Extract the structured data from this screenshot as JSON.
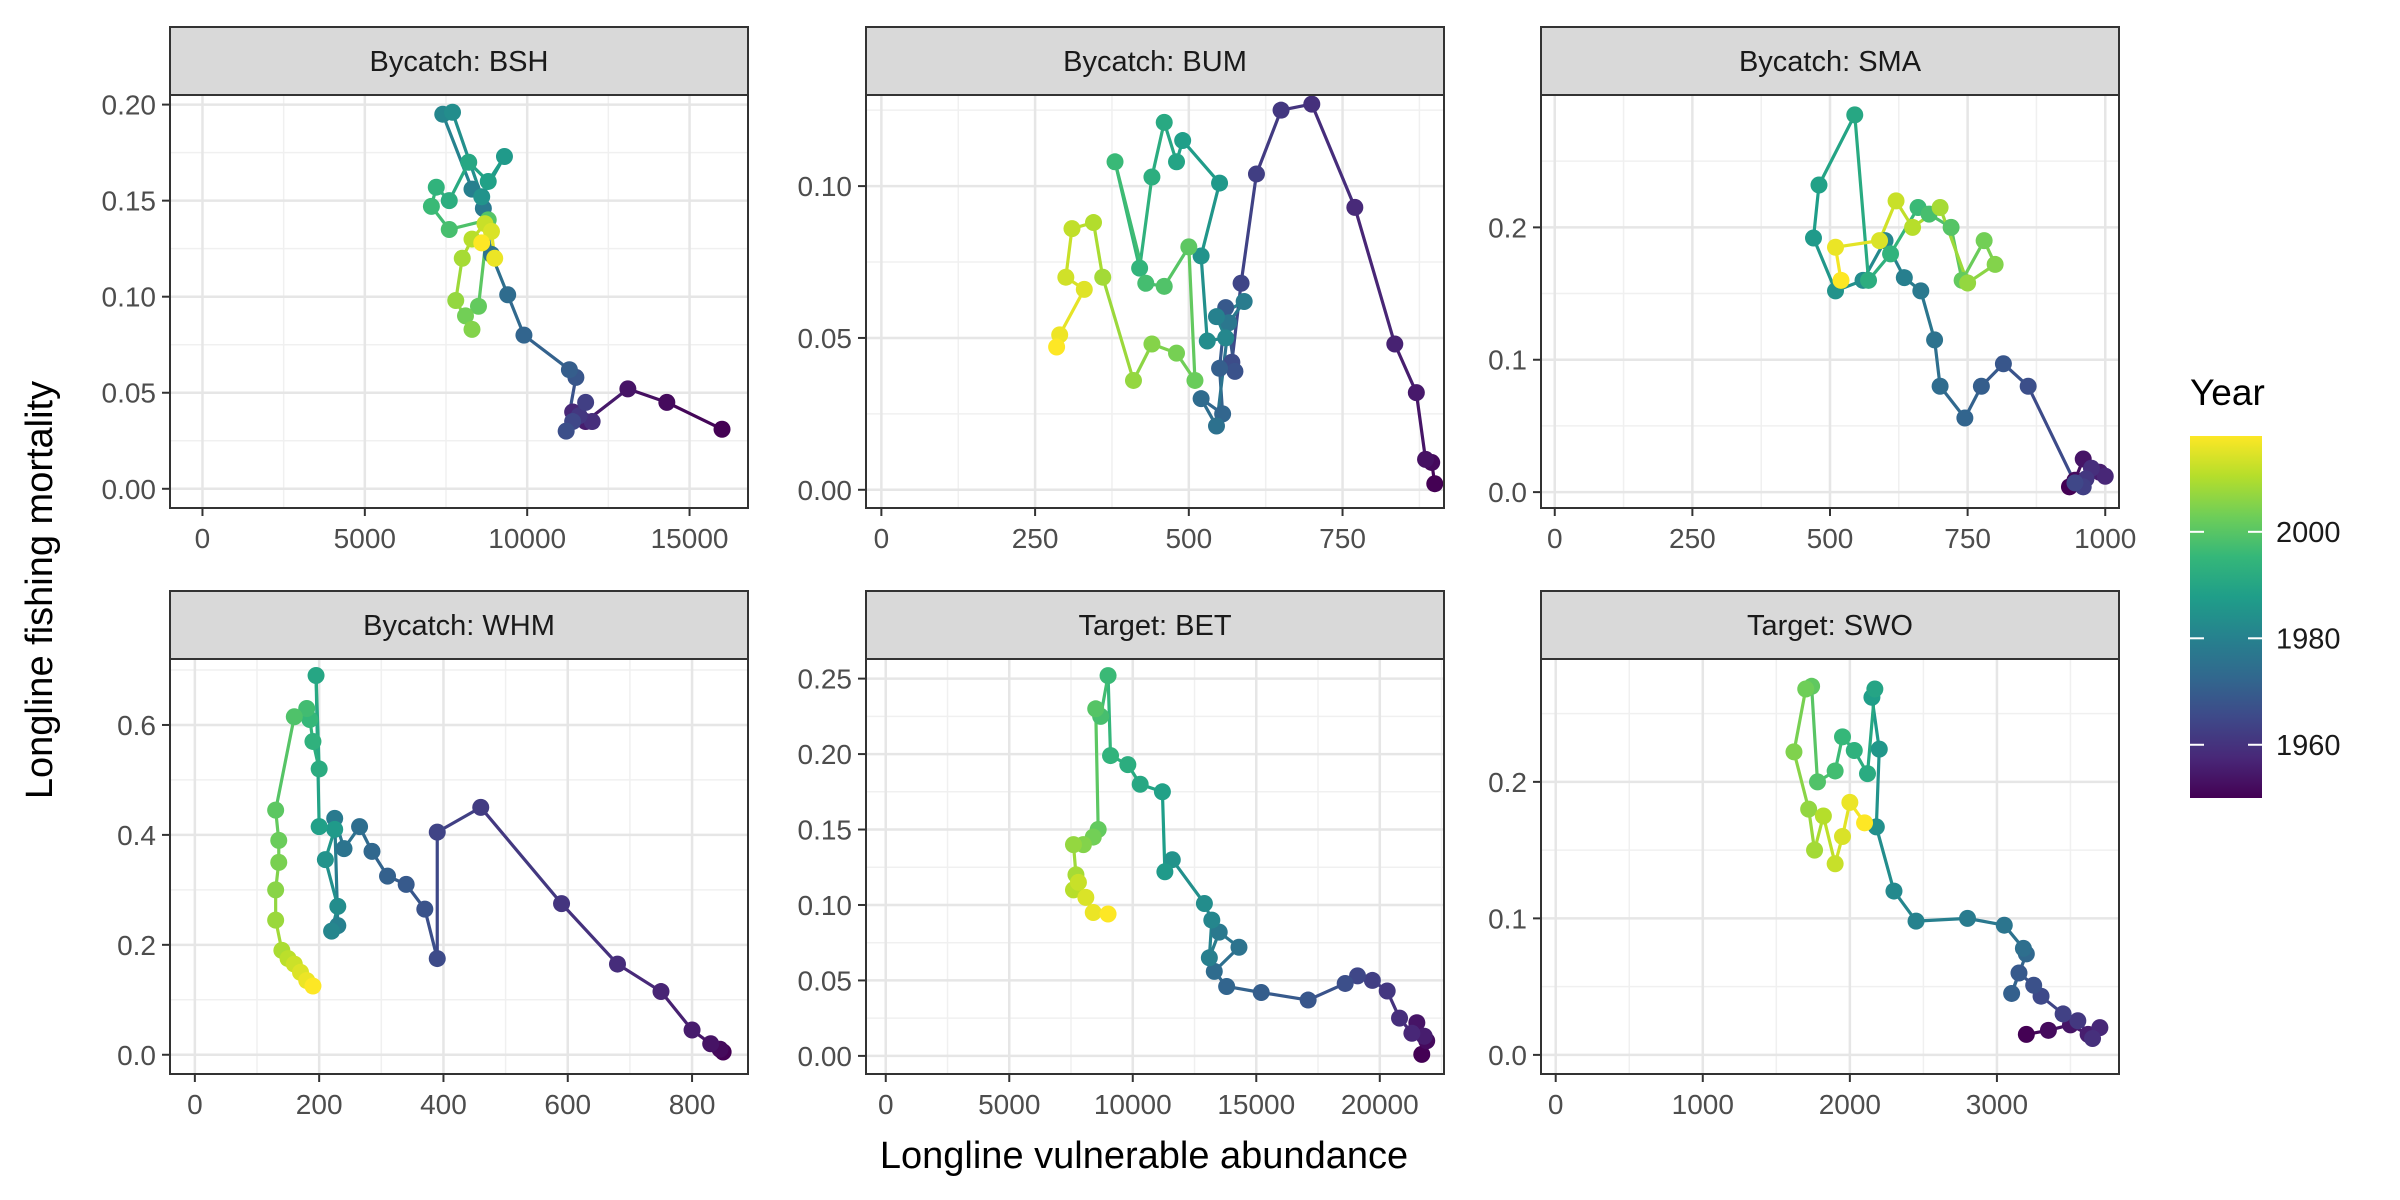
{
  "chart_data": {
    "type": "line",
    "xlabel": "Longline vulnerable abundance",
    "ylabel": "Longline fishing mortality",
    "legend": {
      "title": "Year",
      "placement": "right",
      "range": [
        1950,
        2018
      ],
      "ticks": [
        "1960",
        "1980",
        "2000"
      ],
      "tick_values": [
        1960,
        1980,
        2000
      ]
    },
    "colormap": [
      "#440154",
      "#482878",
      "#3e4989",
      "#31688e",
      "#26828e",
      "#1f9e89",
      "#35b779",
      "#6ece58",
      "#b5de2b",
      "#fde725"
    ],
    "panels": [
      {
        "title": "Bycatch: BSH",
        "xlim": [
          -1000,
          16800
        ],
        "ylim": [
          -0.01,
          0.205
        ],
        "xticks": [
          0,
          5000,
          10000,
          15000
        ],
        "xtick_labels": [
          "0",
          "5000",
          "10000",
          "15000"
        ],
        "yticks": [
          0,
          0.05,
          0.1,
          0.15,
          0.2
        ],
        "ytick_labels": [
          "0.00",
          "0.05",
          "0.10",
          "0.15",
          "0.20"
        ],
        "x": [
          16000,
          14300,
          13100,
          11800,
          11400,
          12000,
          11600,
          11800,
          11400,
          11200,
          11500,
          11300,
          9900,
          9400,
          8900,
          8650,
          8300,
          7400,
          7700,
          8600,
          9300,
          8800,
          8200,
          7600,
          7200,
          7050,
          7600,
          8800,
          8500,
          8100,
          8300,
          7800,
          8000,
          8300,
          8700,
          8900,
          9000,
          8600
        ],
        "y": [
          0.031,
          0.045,
          0.052,
          0.035,
          0.04,
          0.035,
          0.038,
          0.045,
          0.035,
          0.03,
          0.058,
          0.062,
          0.08,
          0.101,
          0.122,
          0.146,
          0.156,
          0.195,
          0.196,
          0.152,
          0.173,
          0.16,
          0.17,
          0.15,
          0.157,
          0.147,
          0.135,
          0.14,
          0.095,
          0.09,
          0.083,
          0.098,
          0.12,
          0.13,
          0.138,
          0.134,
          0.12,
          0.128
        ]
      },
      {
        "title": "Bycatch: BUM",
        "xlim": [
          -25,
          915
        ],
        "ylim": [
          -0.006,
          0.13
        ],
        "xticks": [
          0,
          250,
          500,
          750
        ],
        "xtick_labels": [
          "0",
          "250",
          "500",
          "750"
        ],
        "yticks": [
          0,
          0.05,
          0.1
        ],
        "ytick_labels": [
          "0.00",
          "0.05",
          "0.10"
        ],
        "x": [
          900,
          895,
          885,
          870,
          835,
          770,
          700,
          650,
          610,
          585,
          570,
          575,
          560,
          550,
          555,
          520,
          545,
          565,
          590,
          545,
          560,
          530,
          520,
          550,
          490,
          480,
          460,
          440,
          420,
          380,
          430,
          460,
          500,
          510,
          480,
          440,
          410,
          360,
          345,
          310,
          300,
          330,
          290,
          285
        ],
        "y": [
          0.002,
          0.009,
          0.01,
          0.032,
          0.048,
          0.093,
          0.127,
          0.125,
          0.104,
          0.068,
          0.042,
          0.039,
          0.06,
          0.04,
          0.025,
          0.03,
          0.021,
          0.055,
          0.062,
          0.057,
          0.05,
          0.049,
          0.077,
          0.101,
          0.115,
          0.108,
          0.121,
          0.103,
          0.073,
          0.108,
          0.068,
          0.067,
          0.08,
          0.036,
          0.045,
          0.048,
          0.036,
          0.07,
          0.088,
          0.086,
          0.07,
          0.066,
          0.051,
          0.047
        ]
      },
      {
        "title": "Bycatch: SMA",
        "xlim": [
          -25,
          1025
        ],
        "ylim": [
          -0.012,
          0.3
        ],
        "xticks": [
          0,
          250,
          500,
          750,
          1000
        ],
        "xtick_labels": [
          "0",
          "250",
          "500",
          "750",
          "1000"
        ],
        "yticks": [
          0,
          0.1,
          0.2
        ],
        "ytick_labels": [
          "0.0",
          "0.1",
          "0.2"
        ],
        "x": [
          935,
          945,
          960,
          990,
          1000,
          975,
          965,
          960,
          945,
          860,
          815,
          775,
          745,
          700,
          690,
          665,
          635,
          600,
          560,
          510,
          470,
          480,
          545,
          570,
          610,
          660,
          680,
          720,
          740,
          780,
          800,
          750,
          700,
          650,
          620,
          590,
          510,
          520
        ],
        "y": [
          0.004,
          0.009,
          0.025,
          0.015,
          0.012,
          0.018,
          0.01,
          0.004,
          0.007,
          0.08,
          0.097,
          0.08,
          0.056,
          0.08,
          0.115,
          0.152,
          0.162,
          0.19,
          0.16,
          0.152,
          0.192,
          0.232,
          0.285,
          0.16,
          0.18,
          0.215,
          0.21,
          0.2,
          0.16,
          0.19,
          0.172,
          0.158,
          0.215,
          0.2,
          0.22,
          0.19,
          0.185,
          0.16
        ]
      },
      {
        "title": "Bycatch: WHM",
        "xlim": [
          -40,
          890
        ],
        "ylim": [
          -0.035,
          0.72
        ],
        "xticks": [
          0,
          200,
          400,
          600,
          800
        ],
        "xtick_labels": [
          "0",
          "200",
          "400",
          "600",
          "800"
        ],
        "yticks": [
          0,
          0.2,
          0.4,
          0.6
        ],
        "ytick_labels": [
          "0.0",
          "0.2",
          "0.4",
          "0.6"
        ],
        "x": [
          850,
          845,
          830,
          800,
          750,
          680,
          590,
          460,
          390,
          390,
          370,
          340,
          310,
          285,
          265,
          240,
          225,
          230,
          220,
          230,
          210,
          225,
          200,
          195,
          200,
          190,
          185,
          180,
          160,
          130,
          135,
          135,
          130,
          130,
          140,
          150,
          160,
          170,
          180,
          190
        ],
        "y": [
          0.005,
          0.01,
          0.02,
          0.045,
          0.115,
          0.165,
          0.275,
          0.45,
          0.405,
          0.175,
          0.265,
          0.31,
          0.325,
          0.37,
          0.415,
          0.375,
          0.43,
          0.235,
          0.225,
          0.27,
          0.355,
          0.41,
          0.415,
          0.69,
          0.52,
          0.57,
          0.61,
          0.63,
          0.615,
          0.445,
          0.39,
          0.35,
          0.3,
          0.245,
          0.19,
          0.175,
          0.165,
          0.15,
          0.135,
          0.125
        ]
      },
      {
        "title": "Target: BET",
        "xlim": [
          -800,
          22600
        ],
        "ylim": [
          -0.012,
          0.263
        ],
        "xticks": [
          0,
          5000,
          10000,
          15000,
          20000
        ],
        "xtick_labels": [
          "0",
          "5000",
          "10000",
          "15000",
          "20000"
        ],
        "yticks": [
          0,
          0.05,
          0.1,
          0.15,
          0.2,
          0.25
        ],
        "ytick_labels": [
          "0.00",
          "0.05",
          "0.10",
          "0.15",
          "0.20",
          "0.25"
        ],
        "x": [
          21700,
          21900,
          21500,
          21800,
          21300,
          20800,
          20300,
          19700,
          19100,
          18600,
          17100,
          15200,
          13800,
          13300,
          14300,
          13500,
          13100,
          13200,
          12900,
          11600,
          11300,
          11200,
          10300,
          9800,
          9100,
          9000,
          8700,
          8500,
          8600,
          8400,
          8000,
          7600,
          7700,
          7600,
          7800,
          8100,
          8400,
          9000
        ],
        "y": [
          0.001,
          0.01,
          0.022,
          0.013,
          0.015,
          0.025,
          0.043,
          0.05,
          0.053,
          0.048,
          0.037,
          0.042,
          0.046,
          0.056,
          0.072,
          0.082,
          0.065,
          0.09,
          0.101,
          0.13,
          0.122,
          0.175,
          0.18,
          0.193,
          0.199,
          0.252,
          0.225,
          0.23,
          0.15,
          0.145,
          0.14,
          0.14,
          0.12,
          0.11,
          0.115,
          0.105,
          0.095,
          0.094
        ]
      },
      {
        "title": "Target: SWO",
        "xlim": [
          -100,
          3830
        ],
        "ylim": [
          -0.014,
          0.29
        ],
        "xticks": [
          0,
          1000,
          2000,
          3000
        ],
        "xtick_labels": [
          "0",
          "1000",
          "2000",
          "3000"
        ],
        "yticks": [
          0,
          0.1,
          0.2
        ],
        "ytick_labels": [
          "0.0",
          "0.1",
          "0.2"
        ],
        "x": [
          3200,
          3350,
          3500,
          3620,
          3700,
          3650,
          3550,
          3450,
          3300,
          3250,
          3150,
          3100,
          3200,
          3180,
          3050,
          2800,
          2450,
          2300,
          2180,
          2200,
          2150,
          2170,
          2120,
          2030,
          1950,
          1900,
          1780,
          1740,
          1700,
          1620,
          1720,
          1760,
          1820,
          1900,
          1950,
          2000,
          2100
        ],
        "y": [
          0.015,
          0.018,
          0.022,
          0.015,
          0.02,
          0.012,
          0.025,
          0.03,
          0.043,
          0.051,
          0.06,
          0.045,
          0.074,
          0.078,
          0.095,
          0.1,
          0.098,
          0.12,
          0.167,
          0.224,
          0.262,
          0.268,
          0.206,
          0.223,
          0.233,
          0.208,
          0.2,
          0.27,
          0.268,
          0.222,
          0.18,
          0.15,
          0.175,
          0.14,
          0.16,
          0.185,
          0.17
        ]
      }
    ]
  }
}
